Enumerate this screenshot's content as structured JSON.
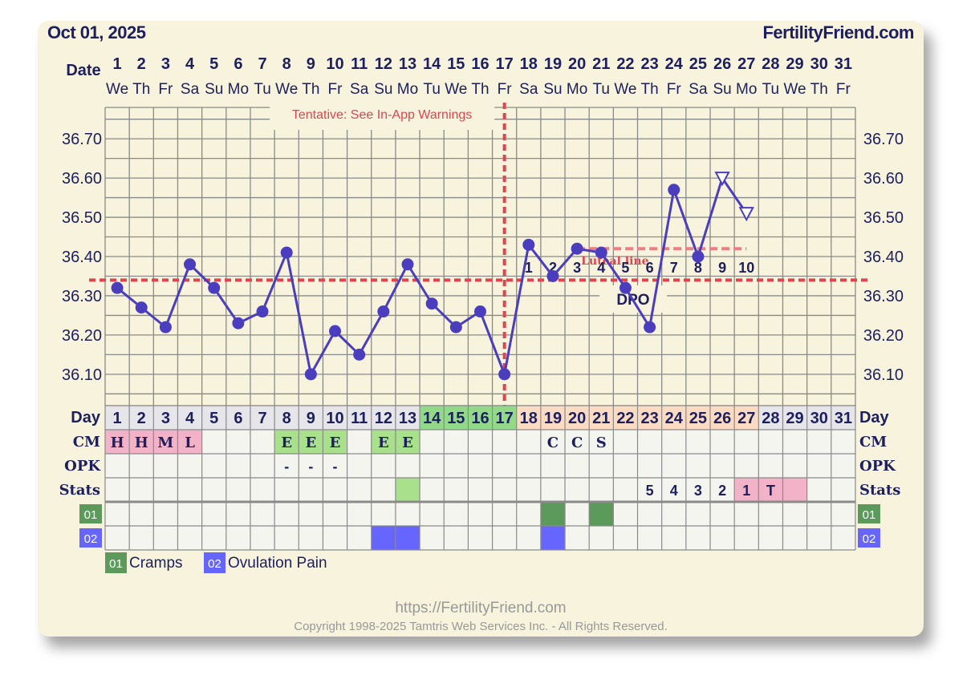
{
  "header": {
    "date": "Oct 01, 2025",
    "site": "FertilityFriend.com"
  },
  "labels": {
    "date": "Date",
    "day": "Day",
    "cm": "CM",
    "opk": "OPK",
    "stats": "Stats",
    "dpo": "DPO"
  },
  "warning": "Tentative: See In-App Warnings",
  "luteal_label": "Luteal line",
  "footer": {
    "url": "https://FertilityFriend.com",
    "copyright": "Copyright 1998-2025 Tamtris Web Services Inc. - All Rights Reserved."
  },
  "colors": {
    "line": "#4a3ebf",
    "coverline": "#e0454f",
    "follicular": "#e5e5ea",
    "fertile": "#93d98a",
    "luteal": "#fbdcc2",
    "cm_pink": "#f2b2c8",
    "cm_green": "#a8e08c",
    "cramps": "#5c9a5c",
    "pain": "#6666ff"
  },
  "chart_data": {
    "type": "line",
    "xlabel": "Day",
    "dates": [
      "1",
      "2",
      "3",
      "4",
      "5",
      "6",
      "7",
      "8",
      "9",
      "10",
      "11",
      "12",
      "13",
      "14",
      "15",
      "16",
      "17",
      "18",
      "19",
      "20",
      "21",
      "22",
      "23",
      "24",
      "25",
      "26",
      "27",
      "28",
      "29",
      "30",
      "31"
    ],
    "weekdays": [
      "We",
      "Th",
      "Fr",
      "Sa",
      "Su",
      "Mo",
      "Tu",
      "We",
      "Th",
      "Fr",
      "Sa",
      "Su",
      "Mo",
      "Tu",
      "We",
      "Th",
      "Fr",
      "Sa",
      "Su",
      "Mo",
      "Tu",
      "We",
      "Th",
      "Fr",
      "Sa",
      "Su",
      "Mo",
      "Tu",
      "We",
      "Th",
      "Fr"
    ],
    "cycle_days": [
      "1",
      "2",
      "3",
      "4",
      "5",
      "6",
      "7",
      "8",
      "9",
      "10",
      "11",
      "12",
      "13",
      "14",
      "15",
      "16",
      "17",
      "18",
      "19",
      "20",
      "21",
      "22",
      "23",
      "24",
      "25",
      "26",
      "27",
      "28",
      "29",
      "30",
      "31"
    ],
    "day_phase": [
      "f",
      "f",
      "f",
      "f",
      "f",
      "f",
      "f",
      "f",
      "f",
      "f",
      "f",
      "f",
      "f",
      "g",
      "g",
      "g",
      "g",
      "l",
      "l",
      "l",
      "l",
      "l",
      "l",
      "l",
      "l",
      "l",
      "l",
      "f",
      "f",
      "f",
      "f"
    ],
    "temperatures": [
      36.32,
      36.27,
      36.22,
      36.38,
      36.32,
      36.23,
      36.26,
      36.41,
      36.1,
      36.21,
      36.15,
      36.26,
      36.38,
      36.28,
      36.22,
      36.26,
      36.1,
      36.43,
      36.35,
      36.42,
      36.41,
      36.32,
      36.22,
      36.57,
      36.4,
      36.6,
      36.51
    ],
    "open_markers": [
      26,
      27
    ],
    "dpo": [
      "",
      "",
      "",
      "",
      "",
      "",
      "",
      "",
      "",
      "",
      "",
      "",
      "",
      "",
      "",
      "",
      "",
      "1",
      "2",
      "3",
      "4",
      "5",
      "6",
      "7",
      "8",
      "9",
      "10",
      "",
      "",
      "",
      ""
    ],
    "ylim": [
      36.02,
      36.78
    ],
    "yticks": [
      "36.10",
      "36.20",
      "36.30",
      "36.40",
      "36.50",
      "36.60",
      "36.70"
    ],
    "coverline": 36.34,
    "ovulation_day": 17,
    "luteal_line": {
      "from_day": 20,
      "to_day": 27,
      "value": 36.42
    },
    "cm": [
      {
        "day": 1,
        "label": "H",
        "color": "pink"
      },
      {
        "day": 2,
        "label": "H",
        "color": "pink"
      },
      {
        "day": 3,
        "label": "M",
        "color": "pink"
      },
      {
        "day": 4,
        "label": "L",
        "color": "pink"
      },
      {
        "day": 8,
        "label": "E",
        "color": "green"
      },
      {
        "day": 9,
        "label": "E",
        "color": "green"
      },
      {
        "day": 10,
        "label": "E",
        "color": "green"
      },
      {
        "day": 12,
        "label": "E",
        "color": "green"
      },
      {
        "day": 13,
        "label": "E",
        "color": "green"
      },
      {
        "day": 19,
        "label": "C",
        "color": ""
      },
      {
        "day": 20,
        "label": "C",
        "color": ""
      },
      {
        "day": 21,
        "label": "S",
        "color": ""
      }
    ],
    "opk": [
      {
        "day": 8,
        "label": "-"
      },
      {
        "day": 9,
        "label": "-"
      },
      {
        "day": 10,
        "label": "-"
      }
    ],
    "stats": [
      {
        "day": 13,
        "label": "",
        "color": "green"
      },
      {
        "day": 23,
        "label": "5",
        "color": ""
      },
      {
        "day": 24,
        "label": "4",
        "color": ""
      },
      {
        "day": 25,
        "label": "3",
        "color": ""
      },
      {
        "day": 26,
        "label": "2",
        "color": ""
      },
      {
        "day": 27,
        "label": "1",
        "color": "pink"
      },
      {
        "day": 28,
        "label": "T",
        "color": "pink"
      },
      {
        "day": 29,
        "label": "",
        "color": "pink"
      }
    ],
    "symptoms": [
      {
        "code": "01",
        "name": "Cramps",
        "color": "cramps",
        "days": [
          19,
          21
        ]
      },
      {
        "code": "02",
        "name": "Ovulation Pain",
        "color": "pain",
        "days": [
          12,
          13,
          19
        ]
      }
    ]
  }
}
